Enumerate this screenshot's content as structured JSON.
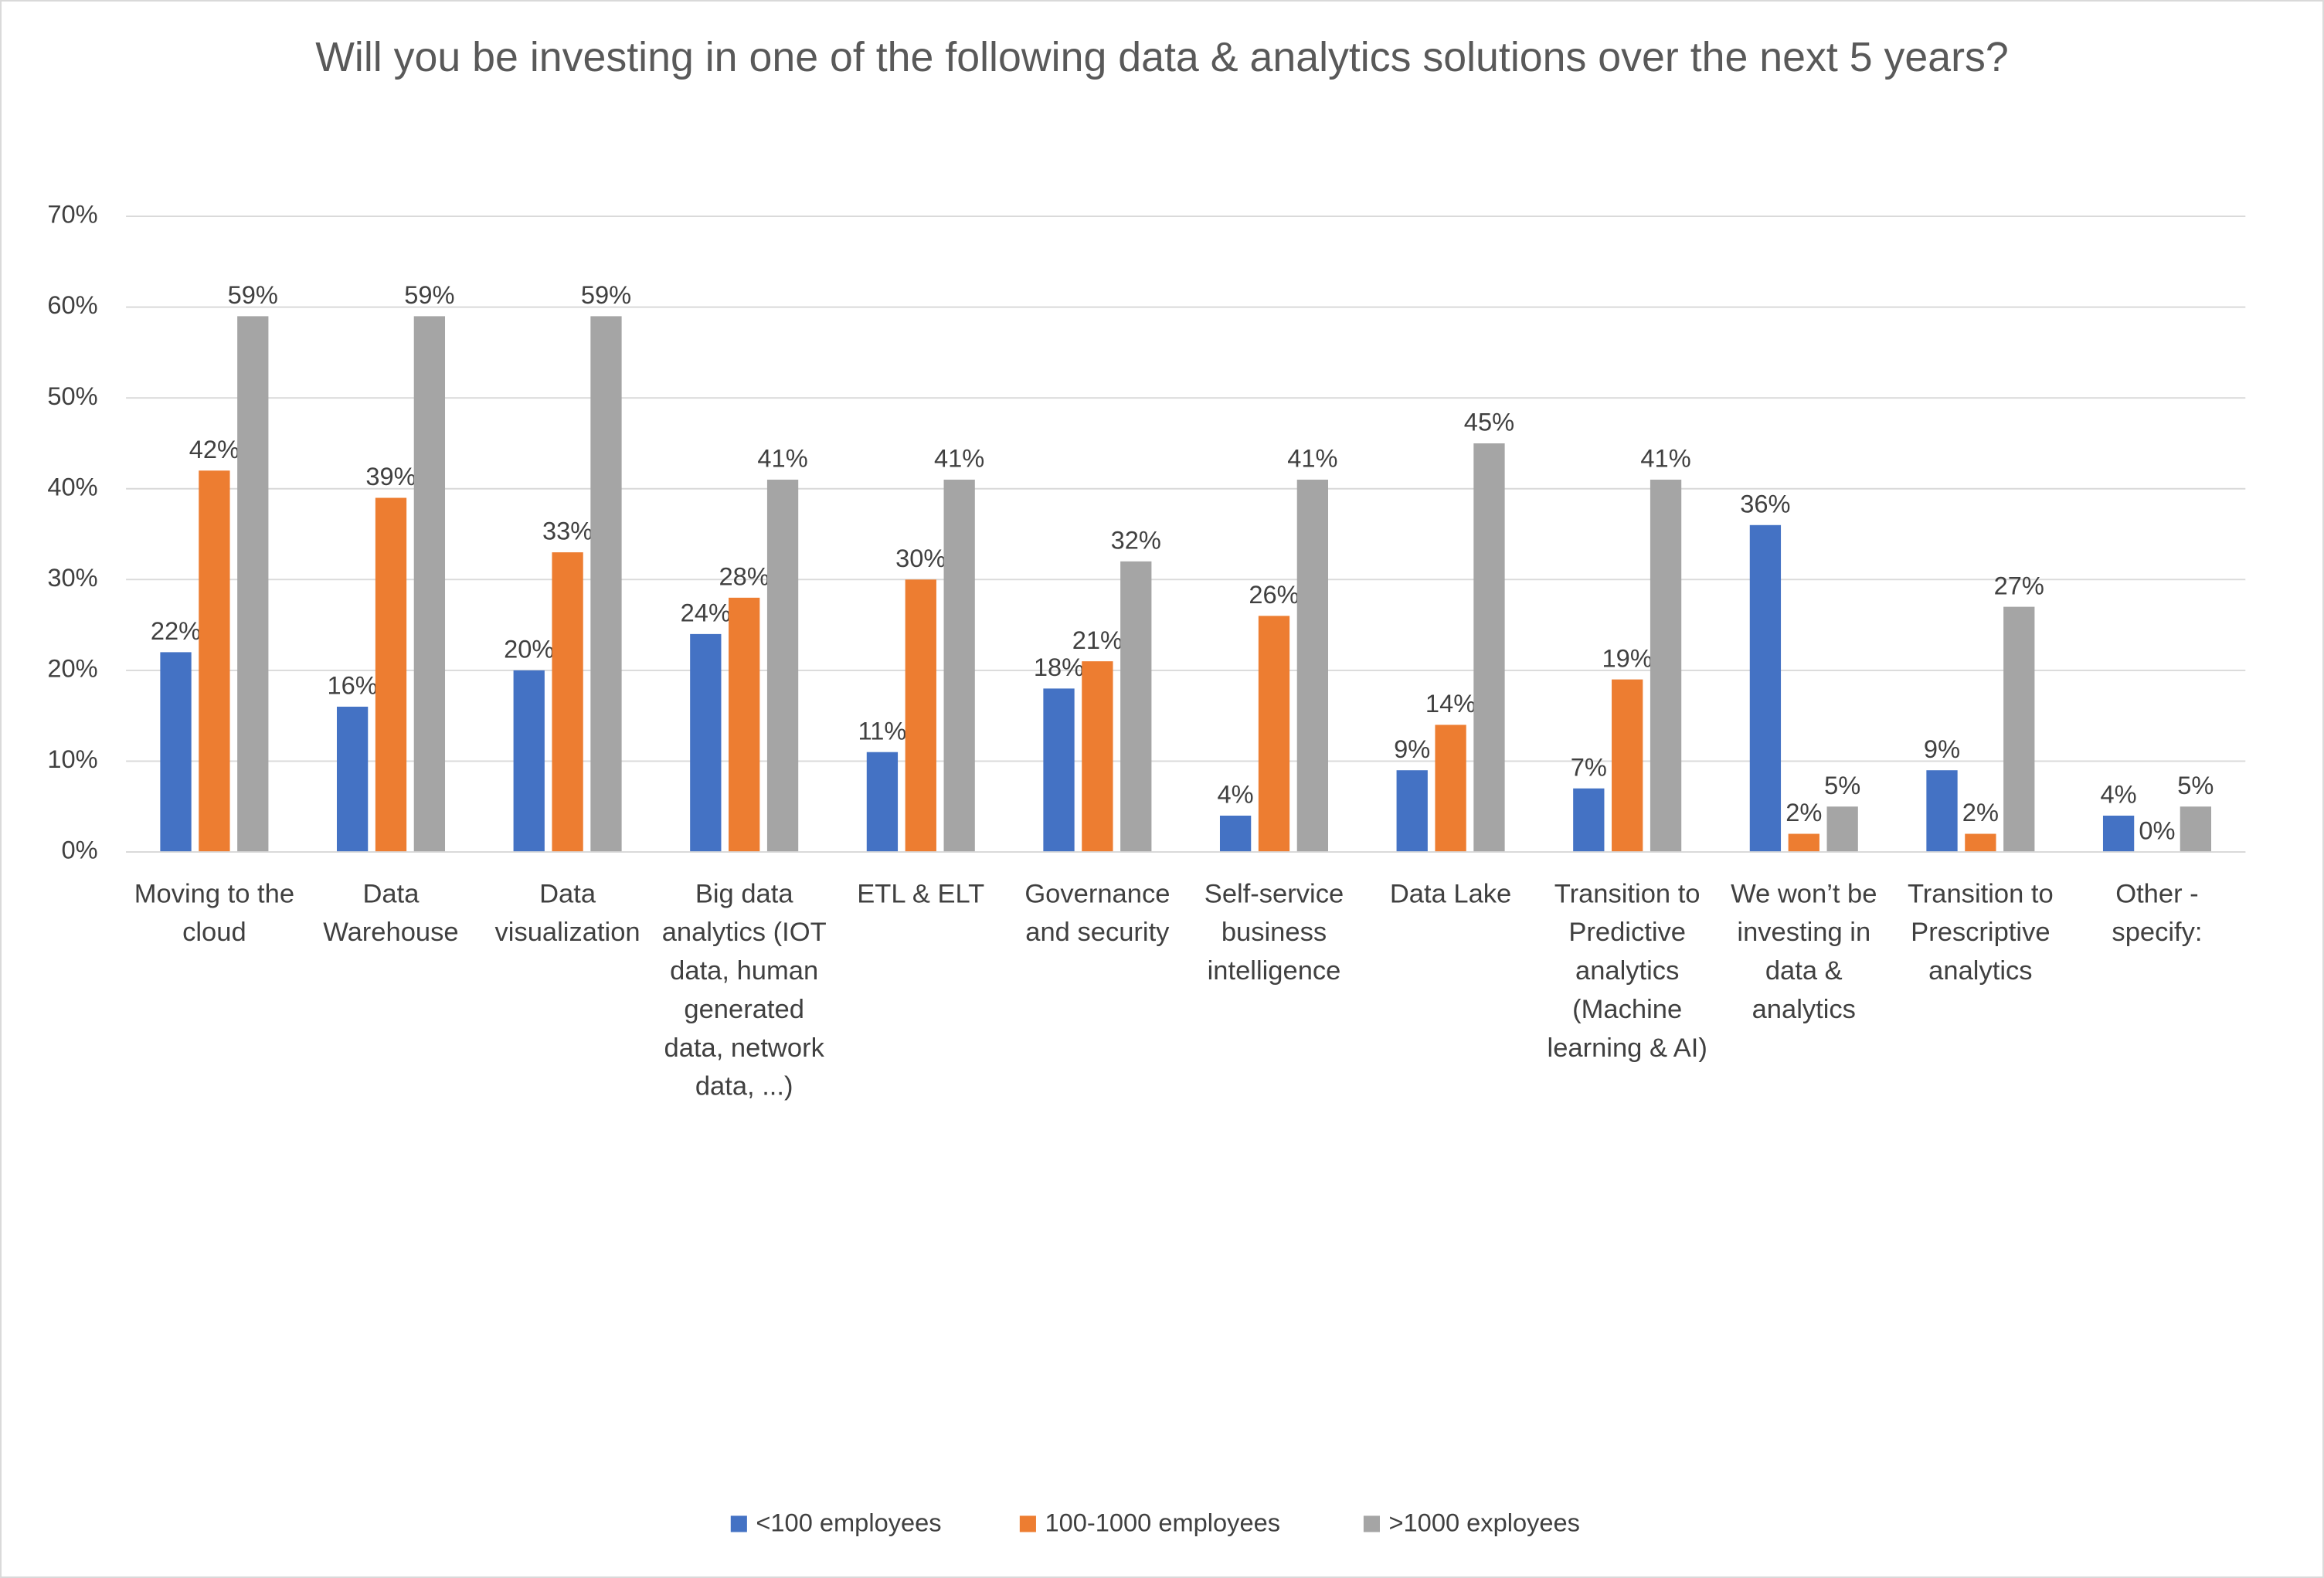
{
  "chart_data": {
    "type": "bar",
    "title": "Will you be investing in one of the following data & analytics solutions over the next 5 years?",
    "categories": [
      "Moving to the cloud",
      "Data Warehouse",
      "Data visualization",
      "Big data analytics (IOT data, human generated data, network data, ...)",
      "ETL & ELT",
      "Governance and security",
      "Self-service business intelligence",
      "Data Lake",
      "Transition to Predictive analytics (Machine learning & AI)",
      "We won’t be investing in data & analytics",
      "Transition to Prescriptive analytics",
      "Other - specify:"
    ],
    "series": [
      {
        "name": "<100 employees",
        "color": "#4472c4",
        "values": [
          22,
          16,
          20,
          24,
          11,
          18,
          4,
          9,
          7,
          36,
          9,
          4
        ],
        "value_labels": [
          "22%",
          "16%",
          "20%",
          "24%",
          "11%",
          "18%",
          "4%",
          "9%",
          "7%",
          "36%",
          "9%",
          "4%"
        ]
      },
      {
        "name": "100-1000 employees",
        "color": "#ed7d31",
        "values": [
          42,
          39,
          33,
          28,
          30,
          21,
          26,
          14,
          19,
          2,
          2,
          0
        ],
        "value_labels": [
          "42%",
          "39%",
          "33%",
          "28%",
          "30%",
          "21%",
          "26%",
          "14%",
          "19%",
          "2%",
          "2%",
          "0%"
        ]
      },
      {
        "name": ">1000 exployees",
        "color": "#a5a5a5",
        "values": [
          59,
          59,
          59,
          41,
          41,
          32,
          41,
          45,
          41,
          5,
          27,
          5
        ],
        "value_labels": [
          "59%",
          "59%",
          "59%",
          "41%",
          "41%",
          "32%",
          "41%",
          "45%",
          "41%",
          "5%",
          "27%",
          "5%"
        ]
      }
    ],
    "ylim": [
      0,
      70
    ],
    "yticks": [
      {
        "value": 0,
        "label": "0%"
      },
      {
        "value": 10,
        "label": "10%"
      },
      {
        "value": 20,
        "label": "20%"
      },
      {
        "value": 30,
        "label": "30%"
      },
      {
        "value": 40,
        "label": "40%"
      },
      {
        "value": 50,
        "label": "50%"
      },
      {
        "value": 60,
        "label": "60%"
      },
      {
        "value": 70,
        "label": "70%"
      }
    ],
    "grid": true,
    "legend": "bottom"
  }
}
